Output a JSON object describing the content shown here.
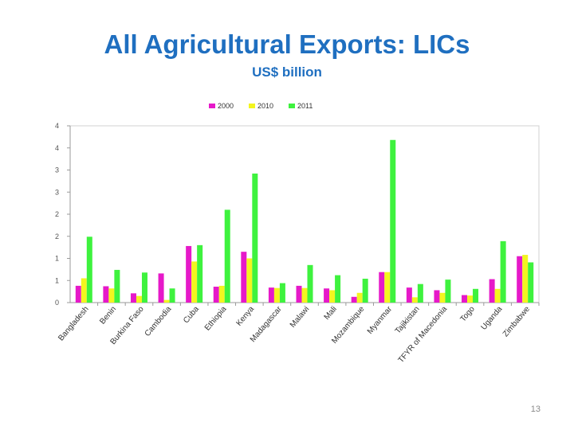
{
  "slide": {
    "title": "All Agricultural Exports: LICs",
    "subtitle": "US$ billion",
    "page_number": "13"
  },
  "chart_data": {
    "type": "bar",
    "title": "",
    "xlabel": "",
    "ylabel": "",
    "ylim": [
      0,
      4
    ],
    "y_tick_labels": [
      "0",
      "1",
      "1",
      "2",
      "2",
      "3",
      "3",
      "4",
      "4"
    ],
    "grid": false,
    "legend_position": "top",
    "categories": [
      "Bangladesh",
      "Benin",
      "Burkina Faso",
      "Cambodia",
      "Cuba",
      "Ethiopia",
      "Kenya",
      "Madagascar",
      "Malawi",
      "Mali",
      "Mozambique",
      "Myanmar",
      "Tajikistan",
      "TFYR of Macedonia",
      "Togo",
      "Uganda",
      "Zimbabwe"
    ],
    "series": [
      {
        "name": "2000",
        "color": "#e619c9",
        "values": [
          0.38,
          0.37,
          0.21,
          0.66,
          1.28,
          0.36,
          1.15,
          0.34,
          0.38,
          0.32,
          0.13,
          0.69,
          0.34,
          0.28,
          0.17,
          0.53,
          1.05
        ]
      },
      {
        "name": "2010",
        "color": "#f3f51f",
        "values": [
          0.55,
          0.32,
          0.15,
          0.06,
          0.93,
          0.38,
          1.0,
          0.33,
          0.33,
          0.28,
          0.22,
          0.69,
          0.12,
          0.22,
          0.16,
          0.31,
          1.08
        ]
      },
      {
        "name": "2011",
        "color": "#3ef23e",
        "values": [
          1.49,
          0.74,
          0.68,
          0.32,
          1.3,
          2.1,
          2.92,
          0.44,
          0.85,
          0.62,
          0.54,
          3.68,
          0.42,
          0.52,
          0.31,
          1.39,
          0.91
        ]
      }
    ]
  }
}
